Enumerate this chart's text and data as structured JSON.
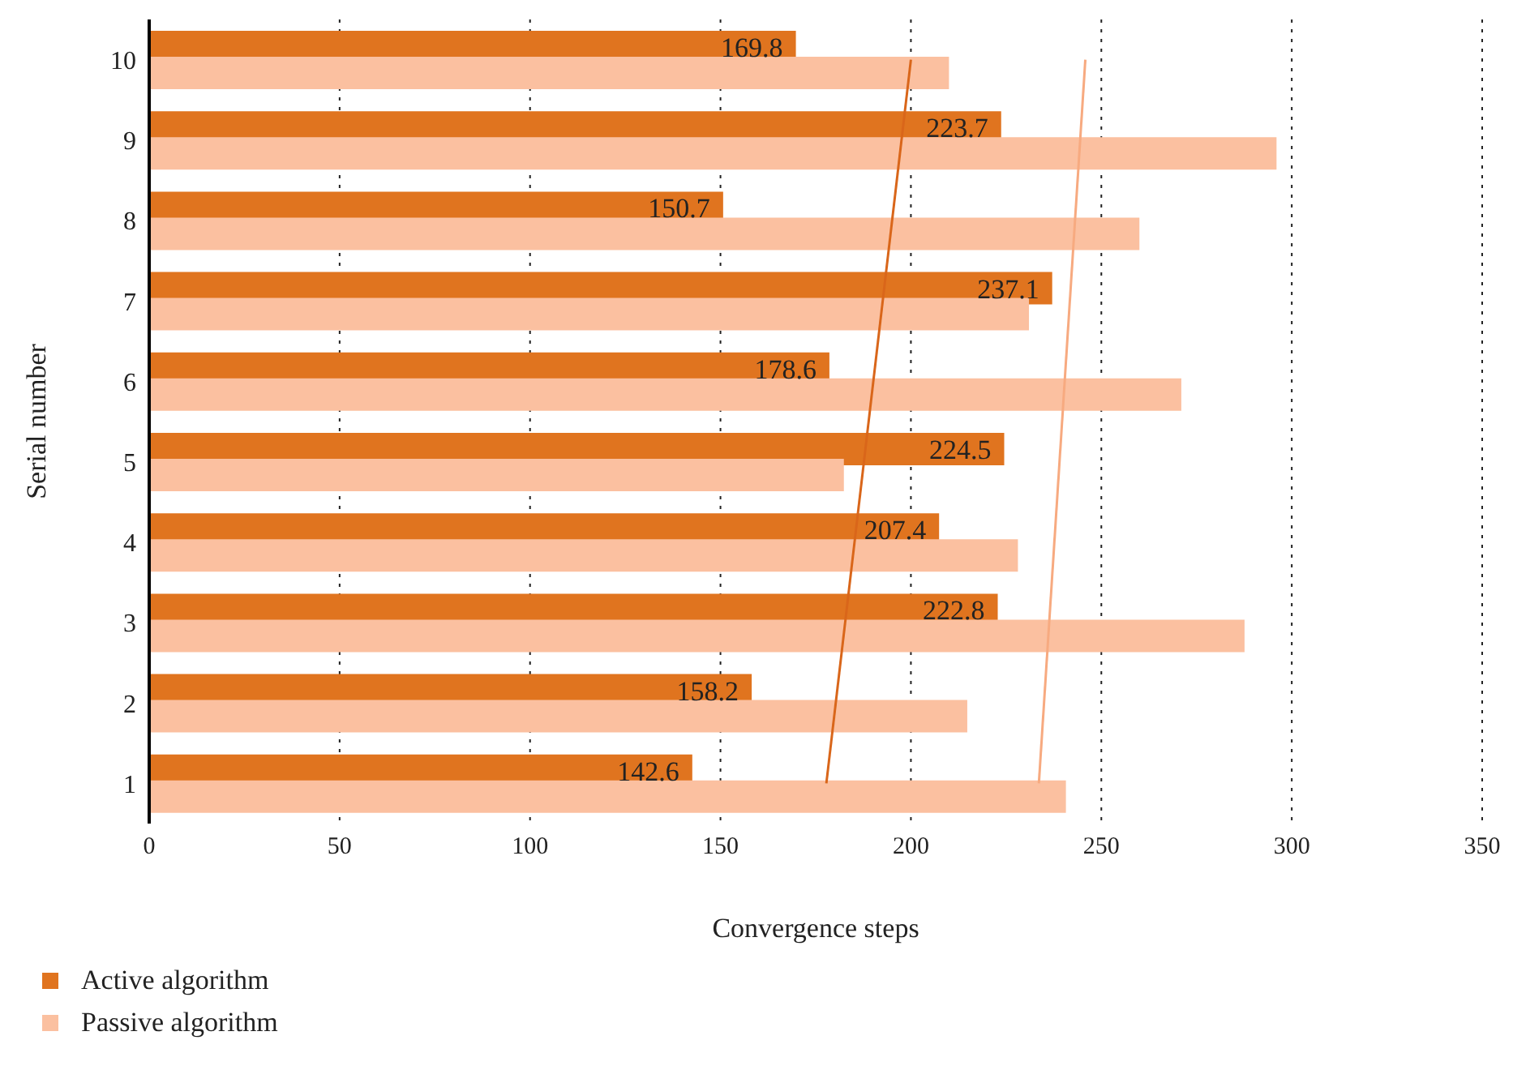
{
  "chart_data": {
    "type": "bar",
    "orientation": "horizontal",
    "xlabel": "Convergence steps",
    "ylabel": "Serial number",
    "categories": [
      "10",
      "9",
      "8",
      "7",
      "6",
      "5",
      "4",
      "3",
      "2",
      "1"
    ],
    "series": [
      {
        "name": "Active algorithm",
        "color": "#e0741f",
        "values": [
          169.8,
          223.7,
          150.7,
          237.1,
          178.6,
          224.5,
          207.4,
          222.8,
          158.2,
          142.6
        ],
        "value_labels": [
          "169.8",
          "223.7",
          "150.7",
          "237.1",
          "178.6",
          "224.5",
          "207.4",
          "222.8",
          "158.2",
          "142.6"
        ]
      },
      {
        "name": "Passive algorithm",
        "color": "#fbc0a0",
        "values": [
          210,
          296,
          260,
          231,
          271,
          182.4,
          228.1,
          287.6,
          214.8,
          240.7
        ]
      },
      {
        "type": "line",
        "color": "#d9661a",
        "values": [
          200,
          null,
          null,
          null,
          null,
          null,
          null,
          null,
          null,
          177.8
        ]
      },
      {
        "type": "line",
        "color": "#f7aa80",
        "values": [
          245.8,
          null,
          null,
          null,
          null,
          null,
          null,
          null,
          null,
          233.6
        ]
      }
    ],
    "xlim": [
      0,
      350
    ],
    "xticks": [
      0,
      50,
      100,
      150,
      200,
      250,
      300,
      350
    ],
    "grid": "x",
    "legend": "bottom left",
    "marker": "none"
  }
}
